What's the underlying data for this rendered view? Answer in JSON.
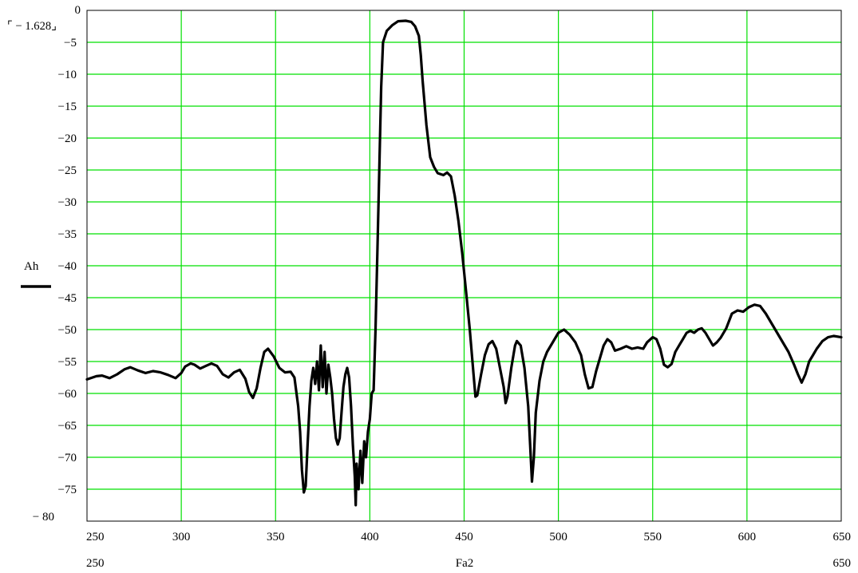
{
  "chart_data": {
    "type": "line",
    "series": [
      {
        "name": "Ah",
        "points": [
          [
            250,
            -57.8
          ],
          [
            255,
            -57.3
          ],
          [
            258,
            -57.2
          ],
          [
            262,
            -57.6
          ],
          [
            266,
            -57.0
          ],
          [
            270,
            -56.2
          ],
          [
            273,
            -55.9
          ],
          [
            277,
            -56.4
          ],
          [
            281,
            -56.8
          ],
          [
            285,
            -56.5
          ],
          [
            289,
            -56.7
          ],
          [
            293,
            -57.1
          ],
          [
            297,
            -57.6
          ],
          [
            300,
            -56.8
          ],
          [
            302,
            -55.8
          ],
          [
            305,
            -55.3
          ],
          [
            307,
            -55.5
          ],
          [
            310,
            -56.1
          ],
          [
            313,
            -55.7
          ],
          [
            316,
            -55.3
          ],
          [
            319,
            -55.7
          ],
          [
            322,
            -57.0
          ],
          [
            325,
            -57.5
          ],
          [
            328,
            -56.7
          ],
          [
            331,
            -56.3
          ],
          [
            334,
            -57.7
          ],
          [
            336,
            -59.8
          ],
          [
            338,
            -60.7
          ],
          [
            340,
            -59.2
          ],
          [
            342,
            -56.0
          ],
          [
            344,
            -53.5
          ],
          [
            346,
            -53.0
          ],
          [
            349,
            -54.2
          ],
          [
            352,
            -56.0
          ],
          [
            355,
            -56.7
          ],
          [
            358,
            -56.6
          ],
          [
            360,
            -57.5
          ],
          [
            362,
            -62.0
          ],
          [
            363,
            -66.0
          ],
          [
            364,
            -72.0
          ],
          [
            365,
            -75.5
          ],
          [
            366,
            -74.5
          ],
          [
            367,
            -68.0
          ],
          [
            368,
            -62.0
          ],
          [
            369,
            -58.0
          ],
          [
            370,
            -56.0
          ],
          [
            371,
            -58.5
          ],
          [
            372,
            -55.0
          ],
          [
            373,
            -59.5
          ],
          [
            374,
            -52.5
          ],
          [
            375,
            -59.0
          ],
          [
            376,
            -53.5
          ],
          [
            377,
            -60.0
          ],
          [
            378,
            -55.5
          ],
          [
            379,
            -57.5
          ],
          [
            380,
            -60.0
          ],
          [
            381,
            -64.0
          ],
          [
            382,
            -67.0
          ],
          [
            383,
            -68.0
          ],
          [
            384,
            -67.0
          ],
          [
            385,
            -63.0
          ],
          [
            386,
            -59.0
          ],
          [
            387,
            -57.0
          ],
          [
            388,
            -56.0
          ],
          [
            389,
            -57.5
          ],
          [
            390,
            -62.0
          ],
          [
            391,
            -68.0
          ],
          [
            392,
            -73.0
          ],
          [
            392.5,
            -77.5
          ],
          [
            393,
            -71.0
          ],
          [
            394,
            -75.0
          ],
          [
            395,
            -69.0
          ],
          [
            396,
            -74.0
          ],
          [
            397,
            -67.5
          ],
          [
            398,
            -70.0
          ],
          [
            399,
            -66.0
          ],
          [
            400,
            -64.0
          ],
          [
            401,
            -60.0
          ],
          [
            402,
            -59.5
          ],
          [
            403,
            -50.0
          ],
          [
            404,
            -38.0
          ],
          [
            405,
            -25.0
          ],
          [
            406,
            -12.0
          ],
          [
            407,
            -5.0
          ],
          [
            409,
            -3.2
          ],
          [
            412,
            -2.3
          ],
          [
            415,
            -1.7
          ],
          [
            419,
            -1.63
          ],
          [
            422,
            -1.8
          ],
          [
            424,
            -2.5
          ],
          [
            426,
            -4.0
          ],
          [
            427,
            -7.0
          ],
          [
            428,
            -11.0
          ],
          [
            430,
            -18.0
          ],
          [
            432,
            -23.0
          ],
          [
            434,
            -24.5
          ],
          [
            436,
            -25.5
          ],
          [
            439,
            -25.8
          ],
          [
            441,
            -25.4
          ],
          [
            443,
            -26.0
          ],
          [
            445,
            -29.0
          ],
          [
            447,
            -33.0
          ],
          [
            449,
            -38.0
          ],
          [
            451,
            -44.0
          ],
          [
            453,
            -50.0
          ],
          [
            455,
            -57.0
          ],
          [
            456,
            -60.5
          ],
          [
            457,
            -60.3
          ],
          [
            459,
            -57.0
          ],
          [
            461,
            -54.0
          ],
          [
            463,
            -52.3
          ],
          [
            465,
            -51.8
          ],
          [
            467,
            -53.0
          ],
          [
            469,
            -56.0
          ],
          [
            471,
            -59.0
          ],
          [
            472,
            -61.5
          ],
          [
            473,
            -60.5
          ],
          [
            475,
            -56.0
          ],
          [
            477,
            -52.5
          ],
          [
            478,
            -51.8
          ],
          [
            480,
            -52.5
          ],
          [
            482,
            -56.0
          ],
          [
            484,
            -62.0
          ],
          [
            485,
            -68.0
          ],
          [
            486,
            -73.8
          ],
          [
            487,
            -70.0
          ],
          [
            488,
            -63.0
          ],
          [
            490,
            -58.0
          ],
          [
            492,
            -55.0
          ],
          [
            494,
            -53.5
          ],
          [
            497,
            -52.0
          ],
          [
            500,
            -50.5
          ],
          [
            503,
            -50.0
          ],
          [
            506,
            -50.8
          ],
          [
            509,
            -52.0
          ],
          [
            512,
            -54.0
          ],
          [
            514,
            -57.0
          ],
          [
            516,
            -59.2
          ],
          [
            518,
            -59.0
          ],
          [
            520,
            -56.5
          ],
          [
            522,
            -54.5
          ],
          [
            524,
            -52.5
          ],
          [
            526,
            -51.5
          ],
          [
            528,
            -52.0
          ],
          [
            530,
            -53.3
          ],
          [
            533,
            -53.0
          ],
          [
            536,
            -52.6
          ],
          [
            539,
            -53.0
          ],
          [
            542,
            -52.8
          ],
          [
            545,
            -53.0
          ],
          [
            547,
            -52.0
          ],
          [
            550,
            -51.2
          ],
          [
            552,
            -51.5
          ],
          [
            554,
            -53.0
          ],
          [
            556,
            -55.5
          ],
          [
            558,
            -55.9
          ],
          [
            560,
            -55.4
          ],
          [
            562,
            -53.5
          ],
          [
            564,
            -52.5
          ],
          [
            566,
            -51.5
          ],
          [
            568,
            -50.5
          ],
          [
            570,
            -50.2
          ],
          [
            572,
            -50.5
          ],
          [
            574,
            -50.0
          ],
          [
            576,
            -49.8
          ],
          [
            578,
            -50.5
          ],
          [
            580,
            -51.5
          ],
          [
            582,
            -52.5
          ],
          [
            584,
            -52.0
          ],
          [
            586,
            -51.3
          ],
          [
            589,
            -49.8
          ],
          [
            592,
            -47.5
          ],
          [
            595,
            -47.0
          ],
          [
            598,
            -47.2
          ],
          [
            601,
            -46.5
          ],
          [
            604,
            -46.1
          ],
          [
            607,
            -46.3
          ],
          [
            610,
            -47.5
          ],
          [
            613,
            -49.0
          ],
          [
            616,
            -50.5
          ],
          [
            619,
            -52.0
          ],
          [
            622,
            -53.5
          ],
          [
            625,
            -55.5
          ],
          [
            627,
            -57.0
          ],
          [
            629,
            -58.3
          ],
          [
            631,
            -57.0
          ],
          [
            633,
            -55.0
          ],
          [
            635,
            -54.0
          ],
          [
            637,
            -53.0
          ],
          [
            640,
            -51.8
          ],
          [
            643,
            -51.2
          ],
          [
            646,
            -51.0
          ],
          [
            650,
            -51.2
          ]
        ]
      }
    ],
    "ylabel": "Ah",
    "xlabel": "Fa2",
    "xlim": [
      250,
      650
    ],
    "ylim": [
      -80,
      0
    ],
    "xticks": [
      250,
      300,
      350,
      400,
      450,
      500,
      550,
      600,
      650
    ],
    "yticks": [
      0,
      -5,
      -10,
      -15,
      -20,
      -25,
      -30,
      -35,
      -40,
      -45,
      -50,
      -55,
      -60,
      -65,
      -70,
      -75,
      -80
    ],
    "y_top_marker": "1.628",
    "x_range_labels": [
      "250",
      "650"
    ],
    "grid": true,
    "colors": {
      "grid": "#00e000",
      "line": "#000000",
      "frame": "#000000"
    }
  }
}
